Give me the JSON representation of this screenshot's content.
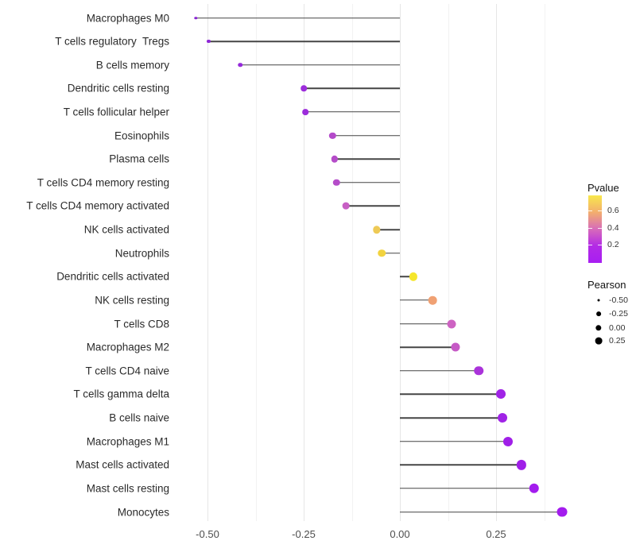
{
  "chart_data": {
    "type": "lollipop",
    "title": "",
    "xlabel": "",
    "ylabel": "",
    "xlim": [
      -0.58,
      0.452
    ],
    "grid": "vertical gridlines only, light gray, minor at 0.125 steps",
    "legend_position": "right",
    "x_ticks": {
      "values": [
        -0.5,
        -0.25,
        0.0,
        0.25
      ],
      "labels": [
        "-0.50",
        "-0.25",
        "0.00",
        "0.25"
      ]
    },
    "x_minor_ticks": [
      -0.375,
      -0.125,
      0.125,
      0.375
    ],
    "categories": [
      "Macrophages M0",
      "T cells regulatory  Tregs",
      "B cells memory",
      "Dendritic cells resting",
      "T cells follicular helper",
      "Eosinophils",
      "Plasma cells",
      "T cells CD4 memory resting",
      "T cells CD4 memory activated",
      "NK cells activated",
      "Neutrophils",
      "Dendritic cells activated",
      "NK cells resting",
      "T cells CD8",
      "Macrophages M2",
      "T cells CD4 naive",
      "T cells gamma delta",
      "B cells naive",
      "Macrophages M1",
      "Mast cells activated",
      "Mast cells resting",
      "Monocytes"
    ],
    "series": [
      {
        "name": "Pearson",
        "values": [
          -0.53,
          -0.497,
          -0.415,
          -0.25,
          -0.245,
          -0.175,
          -0.17,
          -0.165,
          -0.14,
          -0.06,
          -0.047,
          0.035,
          0.085,
          0.135,
          0.145,
          0.205,
          0.262,
          0.267,
          0.281,
          0.316,
          0.349,
          0.421
        ]
      }
    ],
    "point_colors": [
      "#8824d2",
      "#8e28d6",
      "#9529da",
      "#9c2cdb",
      "#9c2cdb",
      "#b44aca",
      "#b54cc9",
      "#b54cc9",
      "#c75fc4",
      "#eeca56",
      "#f2d33f",
      "#f5e62c",
      "#f0a173",
      "#cd63c2",
      "#c65ac6",
      "#aa33da",
      "#a023e6",
      "#a023e6",
      "#a01fe8",
      "#a01fe8",
      "#a31cee",
      "#a31cee"
    ],
    "stem_color": "#454545",
    "legends": {
      "pvalue": {
        "title": "Pvalue",
        "tick_labels": [
          "0.6",
          "0.4",
          "0.2"
        ],
        "gradient_colors": [
          "#f8e84c",
          "#f3ae6e",
          "#d76bba",
          "#b32ae6",
          "#a81ef2"
        ]
      },
      "pearson": {
        "title": "Pearson",
        "entries": [
          {
            "label": "-0.50"
          },
          {
            "label": "-0.25"
          },
          {
            "label": "0.00"
          },
          {
            "label": "0.25"
          }
        ]
      }
    }
  }
}
